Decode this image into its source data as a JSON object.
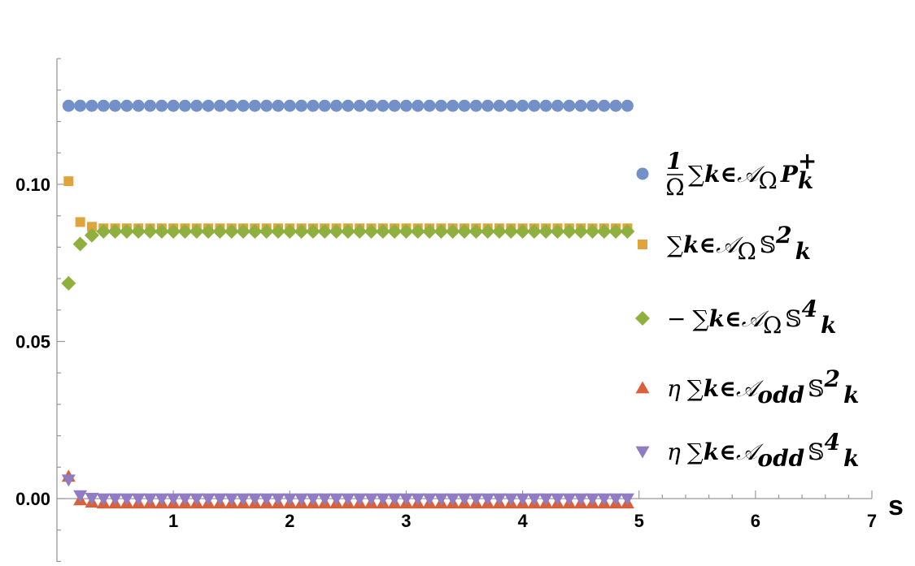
{
  "chart_data": {
    "type": "scatter",
    "title": "",
    "xlabel": "s",
    "ylabel": "",
    "xlim": [
      0.0,
      7.0
    ],
    "ylim": [
      -0.02,
      0.14
    ],
    "x_ticks": [
      {
        "value": 1,
        "label": "1"
      },
      {
        "value": 2,
        "label": "2"
      },
      {
        "value": 3,
        "label": "3"
      },
      {
        "value": 4,
        "label": "4"
      },
      {
        "value": 5,
        "label": "5"
      },
      {
        "value": 6,
        "label": "6"
      },
      {
        "value": 7,
        "label": "7"
      }
    ],
    "y_ticks": [
      {
        "value": 0.0,
        "label": "0.00"
      },
      {
        "value": 0.05,
        "label": "0.05"
      },
      {
        "value": 0.1,
        "label": "0.10"
      }
    ],
    "grid": false,
    "legend_position": "right",
    "x": {
      "start": 0.1,
      "step": 0.1,
      "count": 49
    },
    "series": [
      {
        "legend": {
          "pre": "",
          "frac_num": "1",
          "frac_den": "Ω",
          "sum": "∑",
          "k": "k∈",
          "set": "𝒜",
          "sub": "Ω",
          "symbol": "P",
          "sub2": "k",
          "sup": "+"
        },
        "marker": "circle",
        "color": "#7391c8",
        "head": [],
        "steady": 0.125
      },
      {
        "legend": {
          "pre": "",
          "sum": "∑",
          "k": "k∈",
          "set": "𝒜",
          "sub": "Ω",
          "symbol": "𝕊",
          "sup": "2",
          "sub2": "k"
        },
        "marker": "square",
        "color": "#e0a53a",
        "head": [
          0.101,
          0.088,
          0.0865
        ],
        "steady": 0.086
      },
      {
        "legend": {
          "pre": "−",
          "sum": "∑",
          "k": "k∈",
          "set": "𝒜",
          "sub": "Ω",
          "symbol": "𝕊",
          "sup": "4",
          "sub2": "k"
        },
        "marker": "diamond",
        "color": "#8fb03e",
        "head": [
          0.0685,
          0.081,
          0.0838
        ],
        "steady": 0.085
      },
      {
        "legend": {
          "pre": "η",
          "sum": "∑",
          "k": "k∈",
          "set": "𝒜",
          "sub": "odd",
          "symbol": "𝕊",
          "sup": "2",
          "sub2": "k"
        },
        "marker": "triangle-up",
        "color": "#d9603b",
        "head": [
          0.007,
          -0.0005,
          -0.0012
        ],
        "steady": -0.0015
      },
      {
        "legend": {
          "pre": "η",
          "sum": "∑",
          "k": "k∈",
          "set": "𝒜",
          "sub": "odd",
          "symbol": "𝕊",
          "sup": "4",
          "sub2": "k"
        },
        "marker": "triangle-down",
        "color": "#8f7cc3",
        "head": [
          0.006,
          0.001,
          0.0002
        ],
        "steady": 0.0
      }
    ]
  }
}
